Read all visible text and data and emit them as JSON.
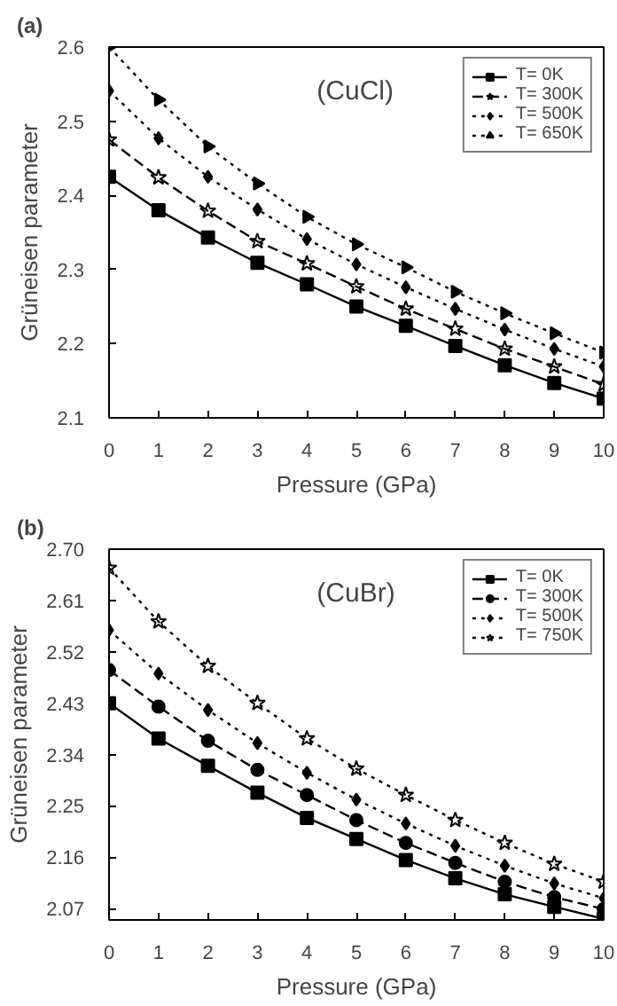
{
  "chart_data": [
    {
      "type": "line",
      "annotations": [
        "(a)",
        "(CuCl)"
      ],
      "xlabel": "Pressure (GPa)",
      "ylabel": "Grüneisen parameter",
      "x": [
        0,
        1,
        2,
        3,
        4,
        5,
        6,
        7,
        8,
        9,
        10
      ],
      "xlim": [
        0,
        10
      ],
      "xticks": [
        0,
        1,
        2,
        3,
        4,
        5,
        6,
        7,
        8,
        9,
        10
      ],
      "ylim": [
        2.1,
        2.6
      ],
      "yticks": [
        2.1,
        2.2,
        2.3,
        2.4,
        2.5,
        2.6
      ],
      "grid": false,
      "legend": "top right",
      "series": [
        {
          "name": "T= 0K",
          "color": "#000000",
          "marker": "square",
          "line_style": "solid",
          "values": [
            2.425,
            2.38,
            2.343,
            2.309,
            2.28,
            2.25,
            2.224,
            2.197,
            2.171,
            2.147,
            2.126
          ]
        },
        {
          "name": "T= 300K",
          "color": "#000000",
          "marker": "star",
          "line_style": "dashed",
          "values": [
            2.475,
            2.424,
            2.379,
            2.338,
            2.308,
            2.277,
            2.247,
            2.22,
            2.193,
            2.169,
            2.145
          ]
        },
        {
          "name": "T= 500K",
          "color": "#000000",
          "marker": "diamond",
          "line_style": "dotted",
          "values": [
            2.541,
            2.477,
            2.425,
            2.381,
            2.341,
            2.307,
            2.276,
            2.247,
            2.219,
            2.193,
            2.169
          ]
        },
        {
          "name": "T= 650K",
          "color": "#000000",
          "marker": "triangle",
          "line_style": "dotted",
          "values": [
            2.6,
            2.529,
            2.466,
            2.416,
            2.371,
            2.334,
            2.303,
            2.27,
            2.241,
            2.214,
            2.188
          ]
        }
      ]
    },
    {
      "type": "line",
      "annotations": [
        "(b)",
        "(CuBr)"
      ],
      "xlabel": "Pressure (GPa)",
      "ylabel": "Grüneisen parameter",
      "x": [
        0,
        1,
        2,
        3,
        4,
        5,
        6,
        7,
        8,
        9,
        10
      ],
      "xlim": [
        0,
        10
      ],
      "xticks": [
        0,
        1,
        2,
        3,
        4,
        5,
        6,
        7,
        8,
        9,
        10
      ],
      "ylim": [
        2.05,
        2.7
      ],
      "yticks": [
        {
          "value": 2.07,
          "label": "2.07"
        },
        {
          "value": 2.16,
          "label": "2.16"
        },
        {
          "value": 2.25,
          "label": "2.25"
        },
        {
          "value": 2.34,
          "label": "2.34"
        },
        {
          "value": 2.43,
          "label": "2.43"
        },
        {
          "value": 2.52,
          "label": "2.52"
        },
        {
          "value": 2.61,
          "label": "2.61"
        },
        {
          "value": 2.7,
          "label": "2.70"
        }
      ],
      "grid": false,
      "legend": "top right",
      "series": [
        {
          "name": "T= 0K",
          "color": "#000000",
          "marker": "square",
          "line_style": "solid",
          "values": [
            2.43,
            2.368,
            2.32,
            2.273,
            2.229,
            2.192,
            2.155,
            2.123,
            2.095,
            2.073,
            2.052
          ]
        },
        {
          "name": "T= 300K",
          "color": "#000000",
          "marker": "circle",
          "line_style": "dashed",
          "values": [
            2.488,
            2.424,
            2.364,
            2.313,
            2.269,
            2.225,
            2.185,
            2.15,
            2.117,
            2.09,
            2.069
          ]
        },
        {
          "name": "T= 500K",
          "color": "#000000",
          "marker": "diamond",
          "line_style": "dotted",
          "values": [
            2.558,
            2.482,
            2.418,
            2.36,
            2.308,
            2.261,
            2.219,
            2.18,
            2.145,
            2.114,
            2.088
          ]
        },
        {
          "name": "T= 750K",
          "color": "#000000",
          "marker": "star",
          "line_style": "dotted",
          "values": [
            2.667,
            2.573,
            2.495,
            2.43,
            2.368,
            2.315,
            2.269,
            2.225,
            2.185,
            2.148,
            2.117
          ]
        }
      ]
    }
  ]
}
